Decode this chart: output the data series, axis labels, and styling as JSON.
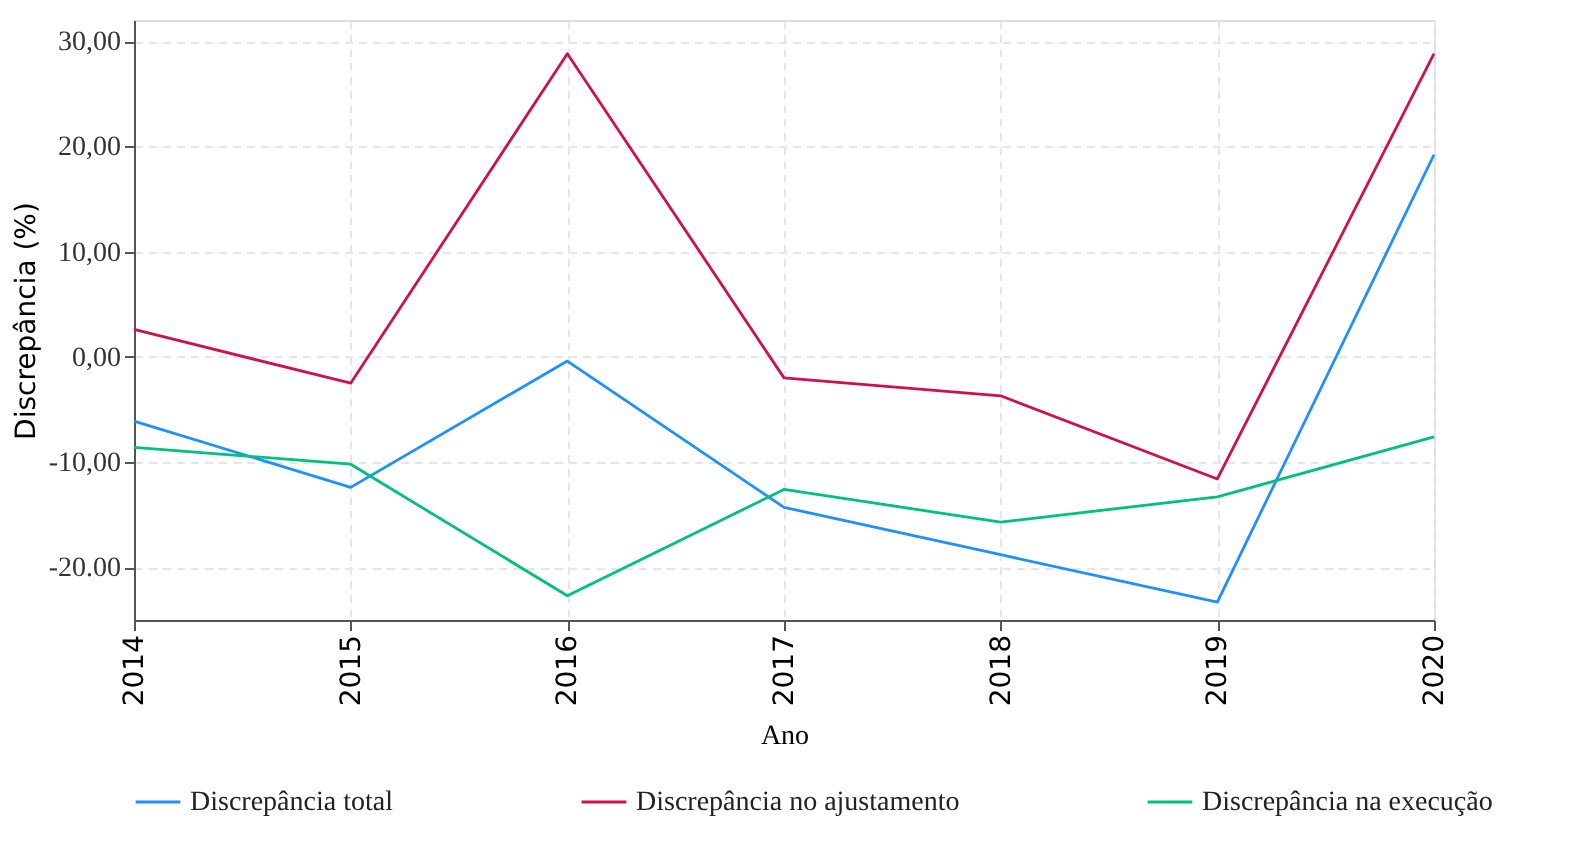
{
  "chart_data": {
    "type": "line",
    "xlabel": "Ano",
    "ylabel": "Discrepância (%)",
    "categories": [
      "2014",
      "2015",
      "2016",
      "2017",
      "2018",
      "2019",
      "2020"
    ],
    "series": [
      {
        "name": "Discrepância total",
        "color": "#1e90ff",
        "values": [
          -6.1,
          -12.4,
          -0.4,
          -14.3,
          -18.8,
          -23.3,
          19.2
        ]
      },
      {
        "name": "Discrepância no ajustamento",
        "color": "#d0104c",
        "values": [
          2.6,
          -2.5,
          28.8,
          -2.0,
          -3.7,
          -11.6,
          28.8
        ]
      },
      {
        "name": "Discrepância na execução",
        "color": "#00c07f",
        "values": [
          -8.6,
          -10.2,
          -22.7,
          -12.6,
          -15.7,
          -13.3,
          -7.6
        ]
      }
    ],
    "ylim": [
      -25,
      32
    ],
    "yticks": [
      {
        "value": 30,
        "label": "30,00"
      },
      {
        "value": 20,
        "label": "20,00"
      },
      {
        "value": 10,
        "label": "10,00"
      },
      {
        "value": 0,
        "label": "0,00"
      },
      {
        "value": -10,
        "label": "-10,00"
      },
      {
        "value": -20,
        "label": "-20.00"
      }
    ],
    "grid": true,
    "legend": "bottom",
    "line_style": "solid",
    "marker": "none"
  }
}
